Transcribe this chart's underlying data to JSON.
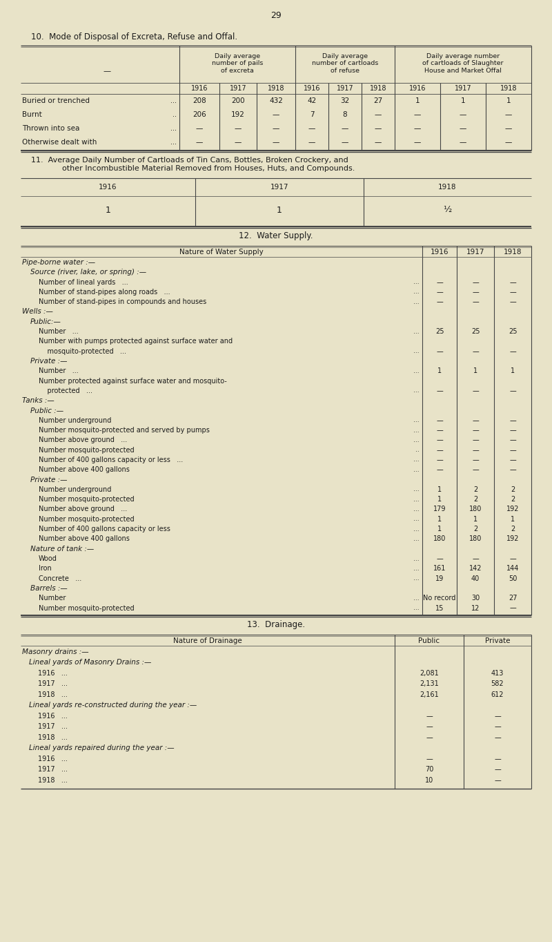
{
  "bg_color": "#e8e3c8",
  "text_color": "#1a1a1a",
  "page_number": "29",
  "section10_title": "10.  Mode of Disposal of Excreta, Refuse and Offal.",
  "section11_title_line1": "11.  Average Daily Number of Cartloads of Tin Cans, Bottles, Broken Crockery, and",
  "section11_title_line2": "        other Incombustible Material Removed from Houses, Huts, and Compounds.",
  "section12_title": "12.  Water Supply.",
  "section13_title": "13.  Drainage.",
  "sec10_group_headers": [
    "Daily average\nnumber of pails\nof excreta",
    "Daily average\nnumber of cartloads\nof refuse",
    "Daily average number\nof cartloads of Slaughter\nHouse and Market Offal"
  ],
  "years": [
    "1916",
    "1917",
    "1918"
  ],
  "sec10_rows": [
    [
      "Buried or trenched",
      "...",
      "208",
      "200",
      "432",
      "42",
      "32",
      "27",
      "1",
      "1",
      "1"
    ],
    [
      "Burnt",
      "..",
      "206",
      "192",
      "—",
      "7",
      "8",
      "—",
      "—",
      "—",
      "—"
    ],
    [
      "Thrown into sea",
      "...",
      "—",
      "—",
      "—",
      "—",
      "—",
      "—",
      "—",
      "—",
      "—"
    ],
    [
      "Otherwise dealt with",
      "...",
      "—",
      "—",
      "—",
      "—",
      "—",
      "—",
      "—",
      "—",
      "—"
    ]
  ],
  "sec11_values": [
    "1",
    "1",
    "½"
  ],
  "sec12_rows": [
    {
      "label": "Pipe-borne water :—",
      "indent": 0,
      "header": true,
      "dots": "",
      "v1916": "",
      "v1917": "",
      "v1918": ""
    },
    {
      "label": "Source (river, lake, or spring) :—",
      "indent": 1,
      "header": true,
      "dots": "",
      "v1916": "",
      "v1917": "",
      "v1918": ""
    },
    {
      "label": "Number of lineal yards   ...",
      "indent": 2,
      "header": false,
      "dots": "...",
      "v1916": "—",
      "v1917": "—",
      "v1918": "—"
    },
    {
      "label": "Number of stand-pipes along roads   ...",
      "indent": 2,
      "header": false,
      "dots": "...",
      "v1916": "—",
      "v1917": "—",
      "v1918": "—"
    },
    {
      "label": "Number of stand-pipes in compounds and houses",
      "indent": 2,
      "header": false,
      "dots": "...",
      "v1916": "—",
      "v1917": "—",
      "v1918": "—"
    },
    {
      "label": "Wells :—",
      "indent": 0,
      "header": true,
      "dots": "",
      "v1916": "",
      "v1917": "",
      "v1918": ""
    },
    {
      "label": "Public:—",
      "indent": 1,
      "header": true,
      "dots": "",
      "v1916": "",
      "v1917": "",
      "v1918": ""
    },
    {
      "label": "Number   ...",
      "indent": 2,
      "header": false,
      "dots": "...",
      "v1916": "25",
      "v1917": "25",
      "v1918": "25"
    },
    {
      "label": "Number with pumps protected against surface water and",
      "indent": 2,
      "header": false,
      "dots": "",
      "v1916": "",
      "v1917": "",
      "v1918": ""
    },
    {
      "label": "    mosquito-protected   ...",
      "indent": 2,
      "header": false,
      "dots": "...",
      "v1916": "—",
      "v1917": "—",
      "v1918": "—"
    },
    {
      "label": "Private :—",
      "indent": 1,
      "header": true,
      "dots": "",
      "v1916": "",
      "v1917": "",
      "v1918": ""
    },
    {
      "label": "Number   ...",
      "indent": 2,
      "header": false,
      "dots": "...",
      "v1916": "1",
      "v1917": "1",
      "v1918": "1"
    },
    {
      "label": "Number protected against surface water and mosquito-",
      "indent": 2,
      "header": false,
      "dots": "",
      "v1916": "",
      "v1917": "",
      "v1918": ""
    },
    {
      "label": "    protected   ...",
      "indent": 2,
      "header": false,
      "dots": "...",
      "v1916": "—",
      "v1917": "—",
      "v1918": "—"
    },
    {
      "label": "Tanks :—",
      "indent": 0,
      "header": true,
      "dots": "",
      "v1916": "",
      "v1917": "",
      "v1918": ""
    },
    {
      "label": "Public :—",
      "indent": 1,
      "header": true,
      "dots": "",
      "v1916": "",
      "v1917": "",
      "v1918": ""
    },
    {
      "label": "Number underground",
      "indent": 2,
      "header": false,
      "dots": "...",
      "v1916": "—",
      "v1917": "—",
      "v1918": "—"
    },
    {
      "label": "Number mosquito-protected and served by pumps",
      "indent": 2,
      "header": false,
      "dots": "...",
      "v1916": "—",
      "v1917": "—",
      "v1918": "—"
    },
    {
      "label": "Number above ground   ...",
      "indent": 2,
      "header": false,
      "dots": "...",
      "v1916": "—",
      "v1917": "—",
      "v1918": "—"
    },
    {
      "label": "Number mosquito-protected",
      "indent": 2,
      "header": false,
      "dots": "..",
      "v1916": "—",
      "v1917": "—",
      "v1918": "—"
    },
    {
      "label": "Number of 400 gallons capacity or less   ...",
      "indent": 2,
      "header": false,
      "dots": "...",
      "v1916": "—",
      "v1917": "—",
      "v1918": "—"
    },
    {
      "label": "Number above 400 gallons",
      "indent": 2,
      "header": false,
      "dots": "...",
      "v1916": "—",
      "v1917": "—",
      "v1918": "—"
    },
    {
      "label": "Private :—",
      "indent": 1,
      "header": true,
      "dots": "",
      "v1916": "",
      "v1917": "",
      "v1918": ""
    },
    {
      "label": "Number underground",
      "indent": 2,
      "header": false,
      "dots": "...",
      "v1916": "1",
      "v1917": "2",
      "v1918": "2"
    },
    {
      "label": "Number mosquito-protected",
      "indent": 2,
      "header": false,
      "dots": "...",
      "v1916": "1",
      "v1917": "2",
      "v1918": "2"
    },
    {
      "label": "Number above ground   ...",
      "indent": 2,
      "header": false,
      "dots": "...",
      "v1916": "179",
      "v1917": "180",
      "v1918": "192"
    },
    {
      "label": "Number mosquito-protected",
      "indent": 2,
      "header": false,
      "dots": "...",
      "v1916": "1",
      "v1917": "1",
      "v1918": "1"
    },
    {
      "label": "Number of 400 gallons capacity or less",
      "indent": 2,
      "header": false,
      "dots": "...",
      "v1916": "1",
      "v1917": "2",
      "v1918": "2"
    },
    {
      "label": "Number above 400 gallons",
      "indent": 2,
      "header": false,
      "dots": "...",
      "v1916": "180",
      "v1917": "180",
      "v1918": "192"
    },
    {
      "label": "Nature of tank :—",
      "indent": 1,
      "header": true,
      "dots": "",
      "v1916": "",
      "v1917": "",
      "v1918": ""
    },
    {
      "label": "Wood",
      "indent": 2,
      "header": false,
      "dots": "...",
      "v1916": "—",
      "v1917": "—",
      "v1918": "—"
    },
    {
      "label": "Iron",
      "indent": 2,
      "header": false,
      "dots": "...",
      "v1916": "161",
      "v1917": "142",
      "v1918": "144"
    },
    {
      "label": "Concrete   ...",
      "indent": 2,
      "header": false,
      "dots": "...",
      "v1916": "19",
      "v1917": "40",
      "v1918": "50"
    },
    {
      "label": "Barrels :—",
      "indent": 1,
      "header": true,
      "dots": "",
      "v1916": "",
      "v1917": "",
      "v1918": ""
    },
    {
      "label": "Number",
      "indent": 2,
      "header": false,
      "dots": "...",
      "v1916": "No record",
      "v1917": "30",
      "v1918": "27"
    },
    {
      "label": "Number mosquito-protected",
      "indent": 2,
      "header": false,
      "dots": "...",
      "v1916": "15",
      "v1917": "12",
      "v1918": "—"
    }
  ],
  "sec13_rows": [
    {
      "label": "Masonry drains :—",
      "indent": 0,
      "header": true,
      "pub": "",
      "priv": ""
    },
    {
      "label": "Lineal yards of Masonry Drains :—",
      "indent": 1,
      "header": true,
      "pub": "",
      "priv": ""
    },
    {
      "label": "1916   ...",
      "indent": 2,
      "header": false,
      "pub": "2,081",
      "priv": "413"
    },
    {
      "label": "1917   ...",
      "indent": 2,
      "header": false,
      "pub": "2,131",
      "priv": "582"
    },
    {
      "label": "1918   ...",
      "indent": 2,
      "header": false,
      "pub": "2,161",
      "priv": "612"
    },
    {
      "label": "Lineal yards re-constructed during the year :—",
      "indent": 1,
      "header": true,
      "pub": "",
      "priv": ""
    },
    {
      "label": "1916   ...",
      "indent": 2,
      "header": false,
      "pub": "—",
      "priv": "—"
    },
    {
      "label": "1917   ...",
      "indent": 2,
      "header": false,
      "pub": "—",
      "priv": "—"
    },
    {
      "label": "1918   ...",
      "indent": 2,
      "header": false,
      "pub": "—",
      "priv": "—"
    },
    {
      "label": "Lineal yards repaired during the year :—",
      "indent": 1,
      "header": true,
      "pub": "",
      "priv": ""
    },
    {
      "label": "1916   ...",
      "indent": 2,
      "header": false,
      "pub": "—",
      "priv": "—"
    },
    {
      "label": "1917   ...",
      "indent": 2,
      "header": false,
      "pub": "70",
      "priv": "—"
    },
    {
      "label": "1918   ...",
      "indent": 2,
      "header": false,
      "pub": "10",
      "priv": "—"
    }
  ]
}
